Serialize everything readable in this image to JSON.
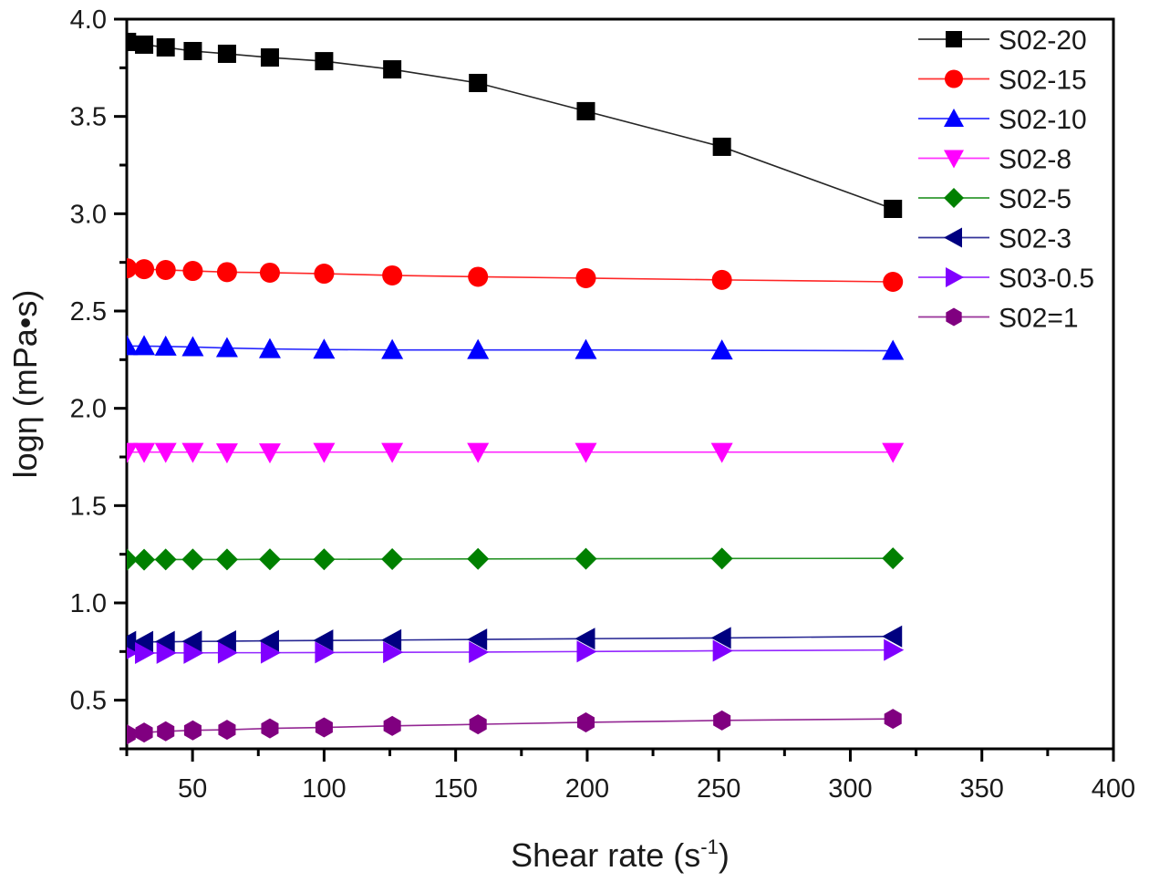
{
  "chart_data": {
    "type": "line",
    "title": "",
    "xlabel": "Shear rate (s",
    "xlabel_sup": "-1",
    "xlabel_close": ")",
    "ylabel": "logη (mPa•s)",
    "xlim": [
      25,
      400
    ],
    "ylim": [
      0.25,
      4.0
    ],
    "x_major_ticks": [
      50,
      100,
      150,
      200,
      250,
      300,
      350,
      400
    ],
    "x_minor_ticks": [
      25,
      75,
      125,
      175,
      225,
      275,
      325,
      375
    ],
    "x_tick_labels": [
      "50",
      "100",
      "150",
      "200",
      "250",
      "300",
      "350",
      "400"
    ],
    "y_major_ticks": [
      0.5,
      1.0,
      1.5,
      2.0,
      2.5,
      3.0,
      3.5,
      4.0
    ],
    "y_minor_ticks": [
      0.25,
      0.75,
      1.25,
      1.75,
      2.25,
      2.75,
      3.25,
      3.75
    ],
    "y_tick_labels": [
      "0.5",
      "1.0",
      "1.5",
      "2.0",
      "2.5",
      "3.0",
      "3.5",
      "4.0"
    ],
    "grid": false,
    "legend_position": "top-right",
    "x": [
      25.1,
      31.6,
      39.8,
      50.1,
      63.1,
      79.4,
      100,
      125.9,
      158.5,
      199.5,
      251.2,
      316.2
    ],
    "series": [
      {
        "name": "S02-20",
        "color": "#000000",
        "marker": "square",
        "values": [
          3.883,
          3.869,
          3.855,
          3.836,
          3.822,
          3.803,
          3.784,
          3.742,
          3.672,
          3.527,
          3.344,
          3.025
        ]
      },
      {
        "name": "S02-15",
        "color": "#ff0000",
        "marker": "circle",
        "values": [
          2.72,
          2.715,
          2.711,
          2.706,
          2.7,
          2.697,
          2.692,
          2.683,
          2.676,
          2.669,
          2.66,
          2.65
        ]
      },
      {
        "name": "S02-10",
        "color": "#0000ff",
        "marker": "triangle-up",
        "values": [
          2.32,
          2.32,
          2.318,
          2.315,
          2.31,
          2.305,
          2.302,
          2.3,
          2.3,
          2.3,
          2.298,
          2.296
        ]
      },
      {
        "name": "S02-8",
        "color": "#ff00ff",
        "marker": "triangle-down",
        "values": [
          1.775,
          1.775,
          1.775,
          1.775,
          1.773,
          1.773,
          1.775,
          1.775,
          1.775,
          1.775,
          1.775,
          1.775
        ]
      },
      {
        "name": "S02-5",
        "color": "#008000",
        "marker": "diamond",
        "values": [
          1.222,
          1.222,
          1.223,
          1.223,
          1.223,
          1.224,
          1.224,
          1.225,
          1.226,
          1.227,
          1.228,
          1.229
        ]
      },
      {
        "name": "S02-3",
        "color": "#000080",
        "marker": "triangle-left",
        "values": [
          0.8,
          0.8,
          0.8,
          0.802,
          0.803,
          0.805,
          0.807,
          0.809,
          0.812,
          0.816,
          0.82,
          0.828
        ]
      },
      {
        "name": "S03-0.5",
        "color": "#8000ff",
        "marker": "triangle-right",
        "values": [
          0.742,
          0.742,
          0.743,
          0.743,
          0.744,
          0.744,
          0.745,
          0.746,
          0.747,
          0.75,
          0.754,
          0.758
        ]
      },
      {
        "name": "S02=1",
        "color": "#800080",
        "marker": "hexagon",
        "values": [
          0.324,
          0.334,
          0.34,
          0.345,
          0.348,
          0.355,
          0.36,
          0.368,
          0.376,
          0.386,
          0.396,
          0.404
        ]
      }
    ]
  }
}
